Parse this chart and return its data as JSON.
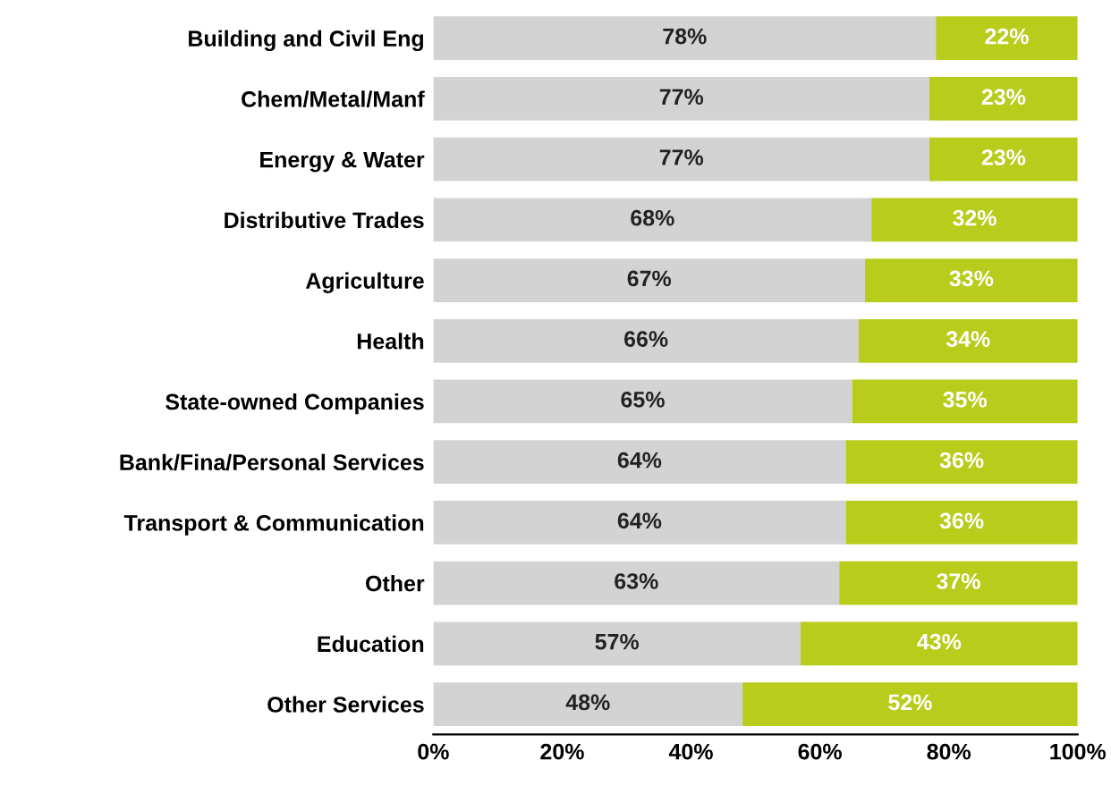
{
  "chart_data": {
    "type": "bar",
    "orientation": "horizontal",
    "stacked": true,
    "categories": [
      "Building and Civil Eng",
      "Chem/Metal/Manf",
      "Energy & Water",
      "Distributive Trades",
      "Agriculture",
      "Health",
      "State-owned Companies",
      "Bank/Fina/Personal Services",
      "Transport & Communication",
      "Other",
      "Education",
      "Other Services"
    ],
    "series": [
      {
        "color": "#d3d3d3",
        "values": [
          78,
          77,
          77,
          68,
          67,
          66,
          65,
          64,
          64,
          63,
          57,
          48
        ],
        "value_labels": [
          "78%",
          "77%",
          "77%",
          "68%",
          "67%",
          "66%",
          "65%",
          "64%",
          "64%",
          "63%",
          "57%",
          "48%"
        ]
      },
      {
        "color": "#b8cc1c",
        "values": [
          22,
          23,
          23,
          32,
          33,
          34,
          35,
          36,
          36,
          37,
          43,
          52
        ],
        "value_labels": [
          "22%",
          "23%",
          "23%",
          "32%",
          "33%",
          "34%",
          "35%",
          "36%",
          "36%",
          "37%",
          "43%",
          "52%"
        ]
      }
    ],
    "xlim": [
      0,
      100
    ],
    "xticks": [
      {
        "value": 0,
        "label": "0%"
      },
      {
        "value": 20,
        "label": "20%"
      },
      {
        "value": 40,
        "label": "40%"
      },
      {
        "value": 60,
        "label": "60%"
      },
      {
        "value": 80,
        "label": "80%"
      },
      {
        "value": 100,
        "label": "100%"
      }
    ],
    "grid": false,
    "legend": false
  }
}
